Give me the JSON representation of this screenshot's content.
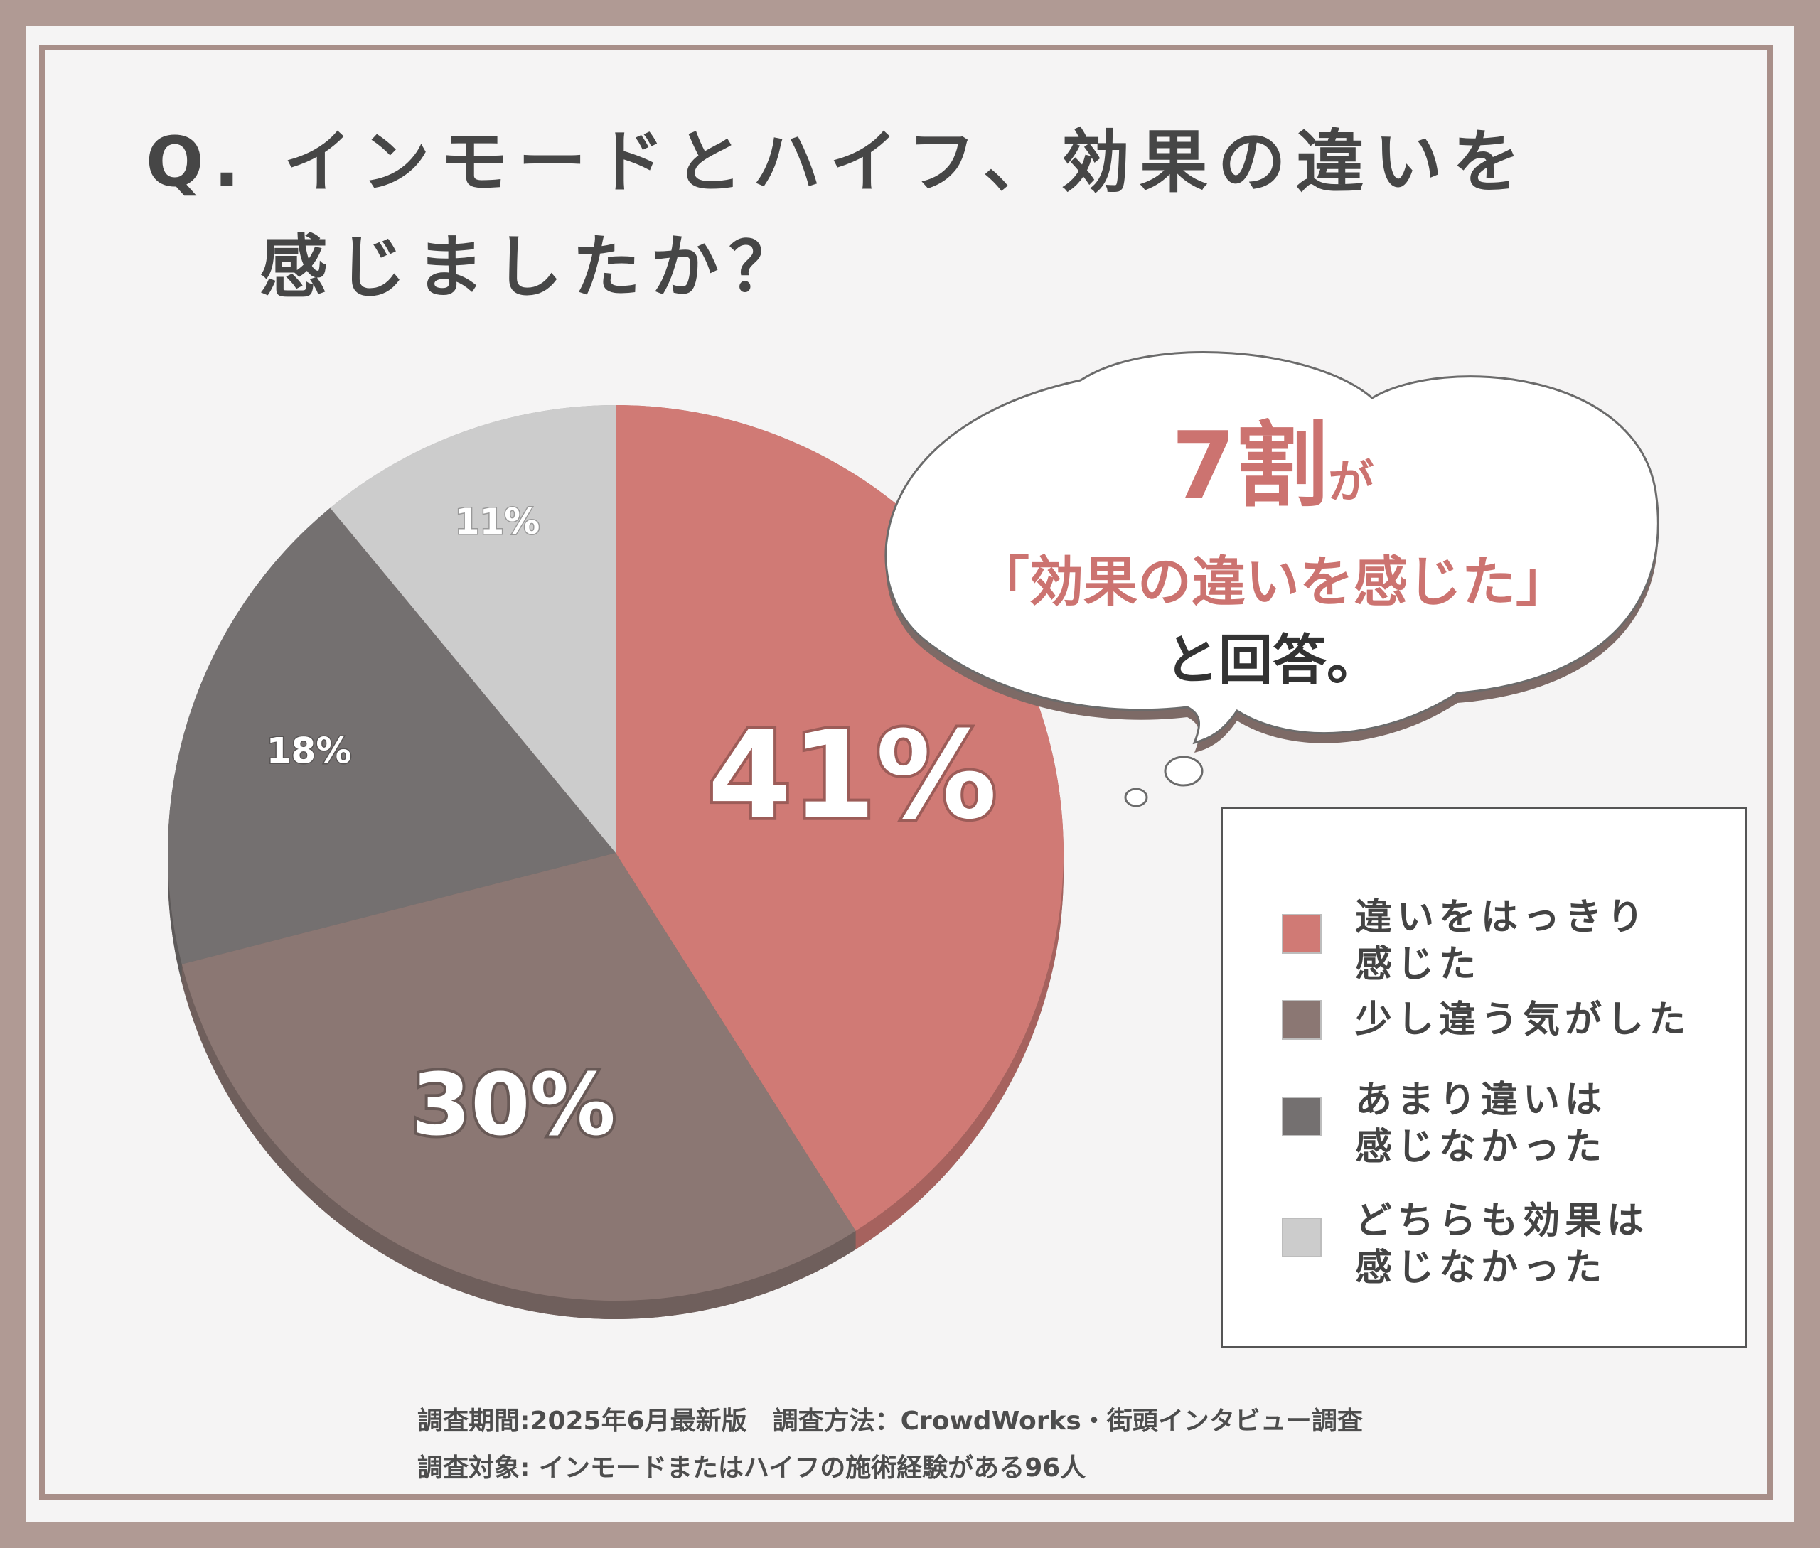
{
  "title": {
    "line1": "Q. インモードとハイフ、効果の違いを",
    "line2": "感じましたか？"
  },
  "chart_data": {
    "type": "pie",
    "categories": [
      "違いをはっきり感じた",
      "少し違う気がした",
      "あまり違いは感じなかった",
      "どちらも効果は感じなかった"
    ],
    "values": [
      41,
      30,
      18,
      11
    ],
    "value_labels": [
      "41%",
      "30%",
      "18%",
      "11%"
    ],
    "colors": [
      "#d07a75",
      "#8b7773",
      "#747070",
      "#cccccc"
    ],
    "start": "12 o'clock, clockwise",
    "legend": "right"
  },
  "callout": {
    "big": "7割",
    "particle": "が",
    "line2": "「効果の違いを感じた」",
    "line3": "と回答。"
  },
  "legend": {
    "items": [
      {
        "label": "違いをはっきり\n感じた",
        "color": "#d07a75"
      },
      {
        "label": "少し違う気がした",
        "color": "#8b7773"
      },
      {
        "label": "あまり違いは\n感じなかった",
        "color": "#747070"
      },
      {
        "label": "どちらも効果は\n感じなかった",
        "color": "#cccccc"
      }
    ]
  },
  "footer": {
    "line1": "調査期間:2025年6月最新版　調査方法：CrowdWorks・街頭インタビュー調査",
    "line2": "調査対象: インモードまたはハイフの施術経験がある96人"
  }
}
